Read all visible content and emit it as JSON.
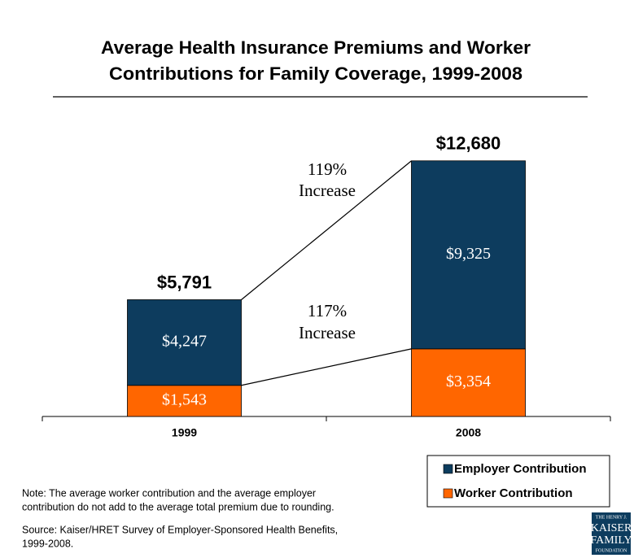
{
  "chart_data": {
    "type": "stacked_bar",
    "title": [
      "Average Health Insurance Premiums and Worker",
      "Contributions for Family Coverage, 1999-2008"
    ],
    "categories": [
      "1999",
      "2008"
    ],
    "series": [
      {
        "name": "Worker Contribution",
        "color": "#ff6600",
        "values": [
          1543,
          3354
        ],
        "value_labels": [
          "$1,543",
          "$3,354"
        ]
      },
      {
        "name": "Employer Contribution",
        "color": "#0d3c5e",
        "values": [
          4247,
          9325
        ],
        "value_labels": [
          "$4,247",
          "$9,325"
        ]
      }
    ],
    "totals": [
      5791,
      12680
    ],
    "total_labels": [
      "$5,791",
      "$12,680"
    ],
    "annotations": [
      [
        "119%",
        "Increase"
      ],
      [
        "117%",
        "Increase"
      ]
    ],
    "ylim": [
      0,
      14000
    ]
  },
  "note": [
    "Note: The average worker contribution and the average employer",
    "contribution do not add to the average total premium due to rounding."
  ],
  "source": [
    "Source:  Kaiser/HRET Survey of Employer-Sponsored Health Benefits,",
    "1999-2008."
  ],
  "logo": [
    "THE HENRY J.",
    "KAISER",
    "FAMILY",
    "FOUNDATION"
  ]
}
